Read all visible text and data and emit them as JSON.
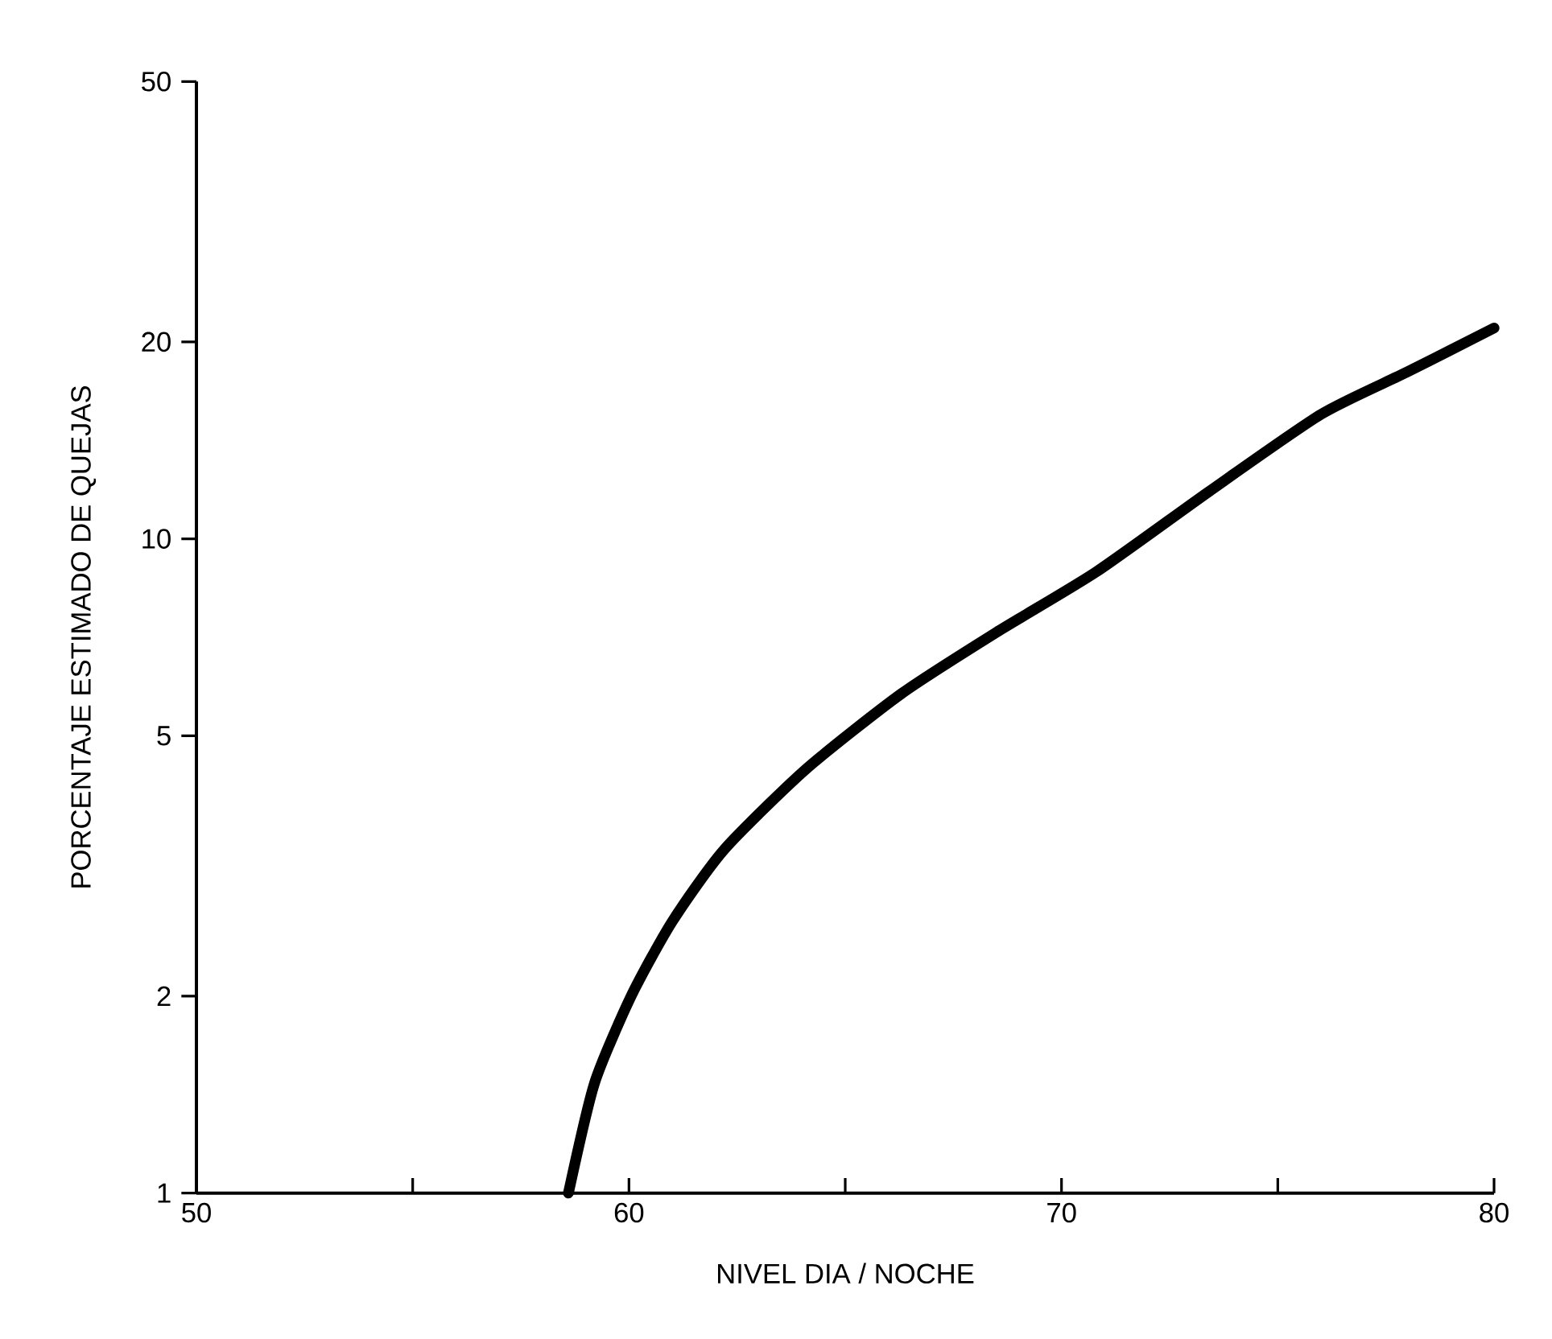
{
  "chart_data": {
    "type": "line",
    "xlabel": "NIVEL DIA / NOCHE",
    "ylabel": "PORCENTAJE ESTIMADO DE QUEJAS",
    "series": [
      {
        "color": "#000000",
        "x": [
          58.6,
          59.2,
          60.05,
          61.0,
          62.2,
          64.1,
          66.3,
          68.5,
          70.8,
          73.4,
          76.0,
          78.0,
          80.0
        ],
        "values": [
          1,
          1.47,
          2,
          2.6,
          3.35,
          4.45,
          5.8,
          7.2,
          8.9,
          11.8,
          15.5,
          18.0,
          21
        ]
      }
    ],
    "xlim": [
      50,
      80
    ],
    "ylim": [
      1,
      50
    ],
    "log": "y",
    "xticks": [
      50,
      {
        "value": 55,
        "label": null
      },
      60,
      {
        "value": 65,
        "label": null
      },
      70,
      {
        "value": 75,
        "label": null
      },
      80
    ],
    "yticks": [
      1,
      2,
      5,
      10,
      20,
      50
    ],
    "grid": false,
    "marker": "none",
    "line_style": "solid"
  }
}
